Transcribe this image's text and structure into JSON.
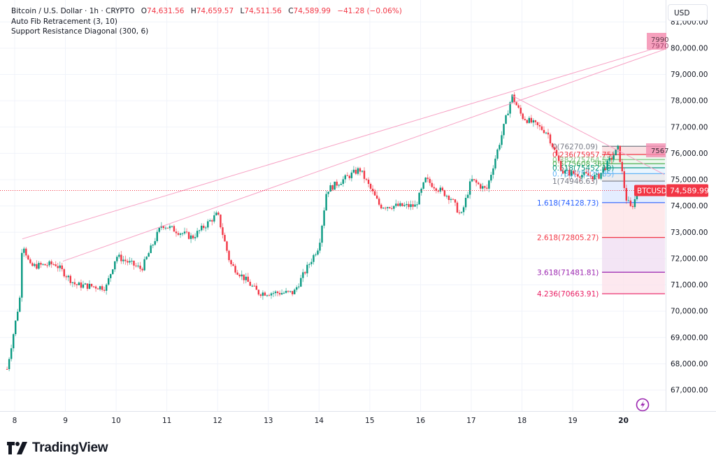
{
  "legend": {
    "symbol_line": "Bitcoin / U.S. Dollar · 1h · CRYPTO",
    "open_label": "O",
    "open": "74,631.56",
    "high_label": "H",
    "high": "74,659.57",
    "low_label": "L",
    "low": "74,511.56",
    "close_label": "C",
    "close": "74,589.99",
    "change": "−41.28 (−0.06%)",
    "indicators": [
      "Auto Fib Retracement (3, 10)",
      "Support Resistance Diagonal (300, 6)"
    ]
  },
  "currency_button": "USD",
  "brand": "TradingView",
  "price_tag": {
    "symbol": "BTCUSD",
    "price": "74,589.99"
  },
  "colors": {
    "up": "#089981",
    "down": "#f23645",
    "grid": "#f0f3fa",
    "diag": "#f7a1c4",
    "text": "#131722"
  },
  "chart_data": {
    "type": "candlestick",
    "title": "Bitcoin / U.S. Dollar · 1h · CRYPTO",
    "xlabel": "",
    "ylabel": "USD",
    "x_ticks": [
      "8",
      "9",
      "10",
      "11",
      "12",
      "13",
      "14",
      "15",
      "16",
      "17",
      "18",
      "19",
      "20"
    ],
    "y_ticks": [
      "67,000.00",
      "68,000.00",
      "69,000.00",
      "70,000.00",
      "71,000.00",
      "72,000.00",
      "73,000.00",
      "74,000.00",
      "75,000.00",
      "76,000.00",
      "77,000.00",
      "78,000.00",
      "79,000.00",
      "80,000.00",
      "81,000.00"
    ],
    "ylim": [
      66000,
      81000
    ],
    "grid": true,
    "last_price": 74589.99,
    "ohlc_last": {
      "open": 74631.56,
      "high": 74659.57,
      "low": 74511.56,
      "close": 74589.99,
      "change": -41.28,
      "change_pct": -0.06
    },
    "approx_path": [
      {
        "day": 7.85,
        "price": 67800
      },
      {
        "day": 8.1,
        "price": 70500
      },
      {
        "day": 8.15,
        "price": 72700
      },
      {
        "day": 8.3,
        "price": 71700
      },
      {
        "day": 8.8,
        "price": 71800
      },
      {
        "day": 9.2,
        "price": 71000
      },
      {
        "day": 9.8,
        "price": 70900
      },
      {
        "day": 10.0,
        "price": 72100
      },
      {
        "day": 10.5,
        "price": 71600
      },
      {
        "day": 10.9,
        "price": 73300
      },
      {
        "day": 11.5,
        "price": 72800
      },
      {
        "day": 12.0,
        "price": 73700
      },
      {
        "day": 12.25,
        "price": 71800
      },
      {
        "day": 12.8,
        "price": 70700
      },
      {
        "day": 13.5,
        "price": 70700
      },
      {
        "day": 14.0,
        "price": 72500
      },
      {
        "day": 14.15,
        "price": 74600
      },
      {
        "day": 14.8,
        "price": 75400
      },
      {
        "day": 15.2,
        "price": 74000
      },
      {
        "day": 15.9,
        "price": 74000
      },
      {
        "day": 16.1,
        "price": 75000
      },
      {
        "day": 16.6,
        "price": 74300
      },
      {
        "day": 16.8,
        "price": 73600
      },
      {
        "day": 17.0,
        "price": 75000
      },
      {
        "day": 17.3,
        "price": 74600
      },
      {
        "day": 17.6,
        "price": 76700
      },
      {
        "day": 17.8,
        "price": 78200
      },
      {
        "day": 18.0,
        "price": 77400
      },
      {
        "day": 18.5,
        "price": 76800
      },
      {
        "day": 18.8,
        "price": 75300
      },
      {
        "day": 19.5,
        "price": 75100
      },
      {
        "day": 19.9,
        "price": 76200
      },
      {
        "day": 20.05,
        "price": 74300
      },
      {
        "day": 20.15,
        "price": 73900
      },
      {
        "day": 20.3,
        "price": 74590
      }
    ],
    "fib_levels": [
      {
        "ratio": "0",
        "price": "76270.09",
        "label": "0(76270.09)",
        "color": "#787b86"
      },
      {
        "ratio": "0.236",
        "price": "75957.75",
        "label": "0.236(75957.75)",
        "color": "#f23645"
      },
      {
        "ratio": "0.382",
        "price": "75764.53",
        "label": "0.382(75764.53)",
        "color": "#81c784"
      },
      {
        "ratio": "0.5",
        "price": "75608.36",
        "label": "0.5(75608.36)",
        "color": "#4caf50"
      },
      {
        "ratio": "0.618",
        "price": "75452.19",
        "label": "0.618(75452.19)",
        "color": "#089981"
      },
      {
        "ratio": "0.786",
        "price": "75229.85",
        "label": "0.786(75229.85)",
        "color": "#64b5f6"
      },
      {
        "ratio": "1",
        "price": "74946.63",
        "label": "1(74946.63)",
        "color": "#787b86"
      },
      {
        "ratio": "1.618",
        "price": "74128.73",
        "label": "1.618(74128.73)",
        "color": "#2962ff"
      },
      {
        "ratio": "2.618",
        "price": "72805.27",
        "label": "2.618(72805.27)",
        "color": "#f23645"
      },
      {
        "ratio": "3.618",
        "price": "71481.81",
        "label": "3.618(71481.81)",
        "color": "#9c27b0"
      },
      {
        "ratio": "4.236",
        "price": "70663.91",
        "label": "4.236(70663.91)",
        "color": "#e91e63"
      }
    ],
    "diagonal_labels": [
      "7990",
      "7970",
      "7567"
    ],
    "annotations": [
      "BTCUSD 74,589.99"
    ]
  }
}
